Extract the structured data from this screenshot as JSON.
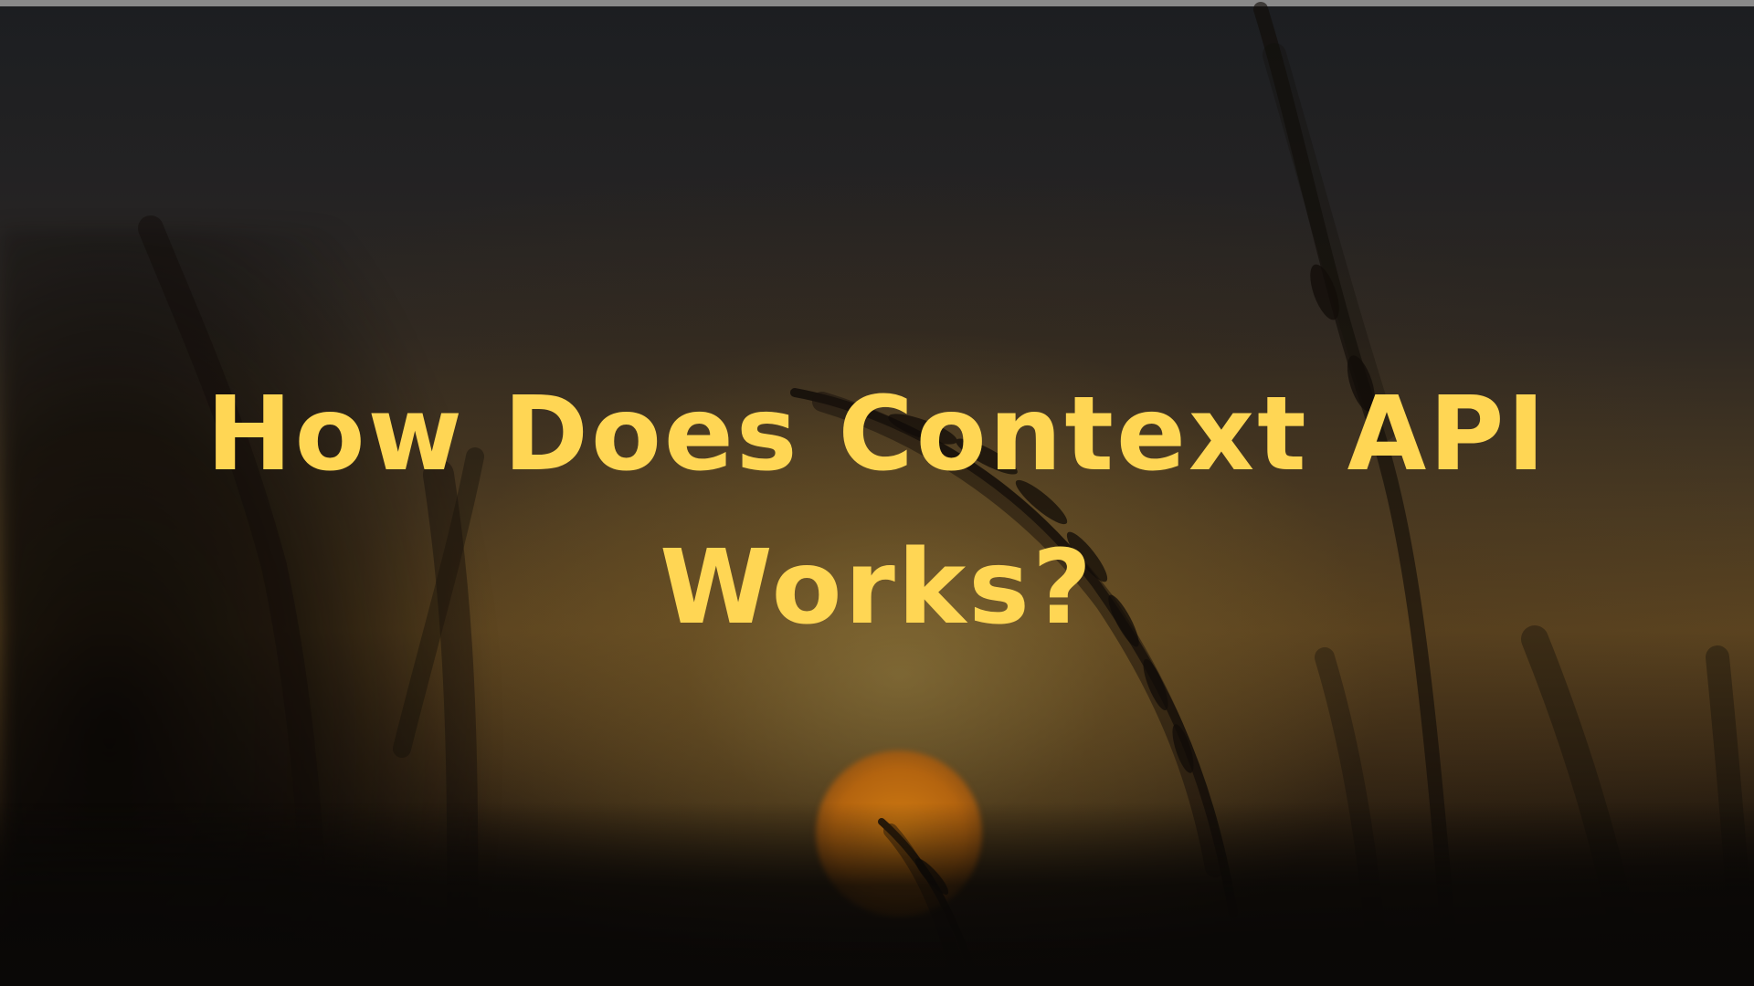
{
  "slide": {
    "title": "How Does Context API Works?"
  },
  "colors": {
    "title_text": "#ffd654",
    "sun": "#c5700f",
    "sky_top": "#1c1e21",
    "horizon_glow": "#8a7a45"
  },
  "background": {
    "image_subject": "grass-silhouette-at-sunset"
  }
}
